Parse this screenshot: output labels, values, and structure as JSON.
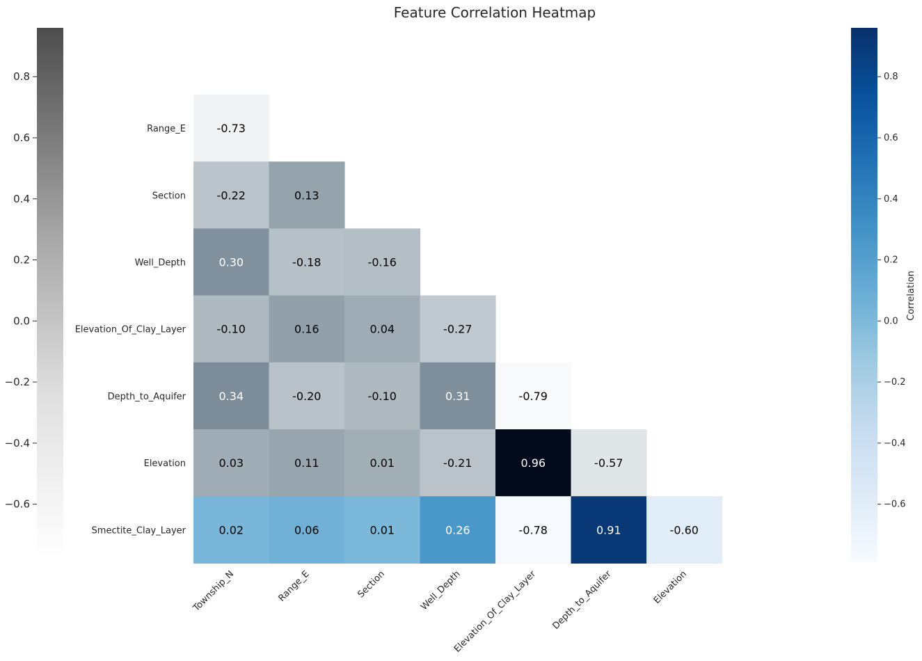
{
  "chart_data": {
    "type": "heatmap",
    "title": "Feature Correlation Heatmap",
    "rows": [
      "Range_E",
      "Section",
      "Well_Depth",
      "Elevation_Of_Clay_Layer",
      "Depth_to_Aquifer",
      "Elevation",
      "Smectite_Clay_Layer"
    ],
    "columns": [
      "Township_N",
      "Range_E",
      "Section",
      "Well_Depth",
      "Elevation_Of_Clay_Layer",
      "Depth_to_Aquifer",
      "Elevation"
    ],
    "mask": "upper-triangle",
    "values": [
      [
        -0.73
      ],
      [
        -0.22,
        0.13
      ],
      [
        0.3,
        -0.18,
        -0.16
      ],
      [
        -0.1,
        0.16,
        0.04,
        -0.27
      ],
      [
        0.34,
        -0.2,
        -0.1,
        0.31,
        -0.79
      ],
      [
        0.03,
        0.11,
        0.01,
        -0.21,
        0.96,
        -0.57
      ],
      [
        0.02,
        0.06,
        0.01,
        0.26,
        -0.78,
        0.91,
        -0.6
      ]
    ],
    "labels": [
      [
        "-0.73"
      ],
      [
        "-0.22",
        "0.13"
      ],
      [
        "0.30",
        "-0.18",
        "-0.16"
      ],
      [
        "-0.10",
        "0.16",
        "0.04",
        "-0.27"
      ],
      [
        "0.34",
        "-0.20",
        "-0.10",
        "0.31",
        "-0.79"
      ],
      [
        "0.03",
        "0.11",
        "0.01",
        "-0.21",
        "0.96",
        "-0.57"
      ],
      [
        "0.02",
        "0.06",
        "0.01",
        "0.26",
        "-0.78",
        "0.91",
        "-0.60"
      ]
    ],
    "last_row_colormap": "Blues",
    "other_rows_colormap": "Greys-dark",
    "vmin": -0.79,
    "vmax": 0.96,
    "colorbar_left": {
      "colormap": "Greys",
      "ticks": [
        "0.8",
        "0.6",
        "0.4",
        "0.2",
        "0.0",
        "−0.2",
        "−0.4",
        "−0.6"
      ],
      "tick_values": [
        0.8,
        0.6,
        0.4,
        0.2,
        0.0,
        -0.2,
        -0.4,
        -0.6
      ]
    },
    "colorbar_right": {
      "colormap": "Blues",
      "label": "Correlation",
      "ticks": [
        "0.8",
        "0.6",
        "0.4",
        "0.2",
        "0.0",
        "−0.2",
        "−0.4",
        "−0.6"
      ],
      "tick_values": [
        0.8,
        0.6,
        0.4,
        0.2,
        0.0,
        -0.2,
        -0.4,
        -0.6
      ]
    },
    "grid": false
  }
}
